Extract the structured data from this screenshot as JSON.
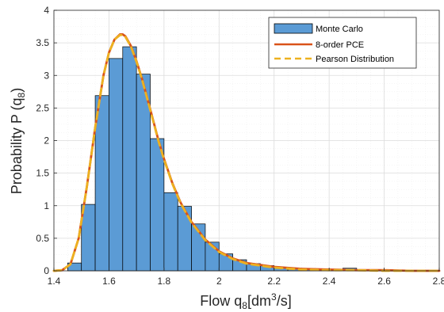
{
  "chart_data": {
    "type": "bar",
    "title": "",
    "xlabel": {
      "base": "Flow q",
      "sub": "8",
      "bracket_open": "[dm",
      "sup": "3",
      "bracket_close": "/s]"
    },
    "ylabel": {
      "base": "Probability P (q",
      "sub": "8",
      "close": ")"
    },
    "xlim": [
      1.4,
      2.8
    ],
    "ylim": [
      0,
      4
    ],
    "xticks": [
      1.4,
      1.6,
      1.8,
      2.0,
      2.2,
      2.4,
      2.6,
      2.8
    ],
    "xtick_labels": [
      "1.4",
      "1.6",
      "1.8",
      "2",
      "2.2",
      "2.4",
      "2.6",
      "2.8"
    ],
    "yticks": [
      0,
      0.5,
      1,
      1.5,
      2,
      2.5,
      3,
      3.5,
      4
    ],
    "ytick_labels": [
      "0",
      "0.5",
      "1",
      "1.5",
      "2",
      "2.5",
      "3",
      "3.5",
      "4"
    ],
    "grid": true,
    "legend_position": "top-right",
    "histogram": {
      "name": "Monte Carlo",
      "color": "#5b9bd5",
      "bin_edges": [
        1.45,
        1.5,
        1.55,
        1.6,
        1.65,
        1.7,
        1.75,
        1.8,
        1.85,
        1.9,
        1.95,
        2.0,
        2.05,
        2.1,
        2.15,
        2.2,
        2.25,
        2.3,
        2.35,
        2.4,
        2.45,
        2.5
      ],
      "values": [
        0.12,
        1.02,
        2.69,
        3.26,
        3.44,
        3.02,
        2.03,
        1.2,
        0.99,
        0.72,
        0.44,
        0.26,
        0.17,
        0.11,
        0.08,
        0.05,
        0.04,
        0.03,
        0.02,
        0.02,
        0.04
      ]
    },
    "series": [
      {
        "name": "8-order PCE",
        "color": "#d95319",
        "style": "solid",
        "x": [
          1.4,
          1.43,
          1.46,
          1.49,
          1.52,
          1.55,
          1.58,
          1.6,
          1.62,
          1.64,
          1.65,
          1.66,
          1.68,
          1.7,
          1.72,
          1.75,
          1.78,
          1.8,
          1.83,
          1.86,
          1.9,
          1.95,
          2.0,
          2.05,
          2.1,
          2.2,
          2.3,
          2.4,
          2.5,
          2.6,
          2.7,
          2.8
        ],
        "y": [
          0.0,
          0.01,
          0.1,
          0.5,
          1.3,
          2.2,
          3.0,
          3.35,
          3.55,
          3.63,
          3.63,
          3.6,
          3.45,
          3.22,
          2.95,
          2.48,
          2.0,
          1.72,
          1.35,
          1.05,
          0.75,
          0.48,
          0.3,
          0.19,
          0.12,
          0.06,
          0.03,
          0.02,
          0.01,
          0.01,
          0.0,
          0.0
        ]
      },
      {
        "name": "Pearson Distribution",
        "color": "#edb120",
        "style": "dashed",
        "x": [
          1.4,
          1.43,
          1.46,
          1.49,
          1.52,
          1.55,
          1.58,
          1.6,
          1.62,
          1.64,
          1.65,
          1.66,
          1.68,
          1.7,
          1.72,
          1.75,
          1.78,
          1.8,
          1.83,
          1.86,
          1.9,
          1.95,
          2.0,
          2.05,
          2.1,
          2.2,
          2.3,
          2.4,
          2.5,
          2.6,
          2.7,
          2.8
        ],
        "y": [
          0.0,
          0.01,
          0.1,
          0.5,
          1.3,
          2.2,
          3.0,
          3.35,
          3.55,
          3.62,
          3.62,
          3.59,
          3.44,
          3.21,
          2.94,
          2.47,
          1.99,
          1.71,
          1.34,
          1.04,
          0.74,
          0.47,
          0.29,
          0.18,
          0.11,
          0.05,
          0.02,
          0.01,
          0.01,
          0.0,
          0.0,
          0.0
        ]
      }
    ]
  }
}
